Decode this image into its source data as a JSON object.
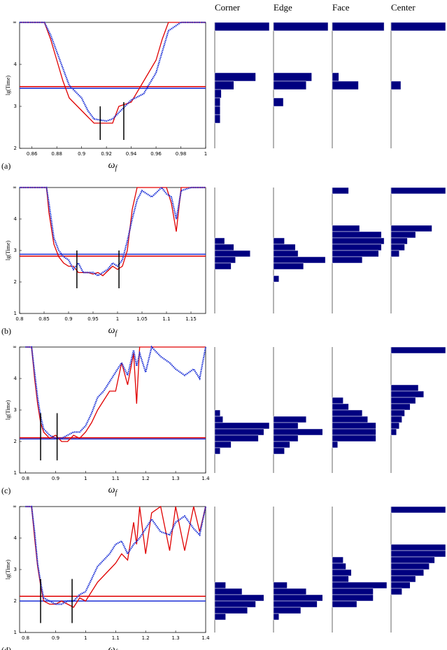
{
  "columns": [
    "Corner",
    "Edge",
    "Face",
    "Center"
  ],
  "chart_data": [
    {
      "type": "line",
      "label": "(a)",
      "y_label": "lg(Time)",
      "x_label": "ω",
      "x_label_sub": "f",
      "xlim": [
        0.85,
        1.0
      ],
      "xticks": [
        0.86,
        0.88,
        0.9,
        0.92,
        0.94,
        0.96,
        0.98,
        1
      ],
      "ylim": [
        2,
        5
      ],
      "yticks": [
        2,
        3,
        4,
        {
          "value": 5,
          "label": "∞"
        }
      ],
      "x": [
        0.85,
        0.86,
        0.87,
        0.875,
        0.88,
        0.885,
        0.89,
        0.9,
        0.905,
        0.91,
        0.92,
        0.925,
        0.93,
        0.94,
        0.95,
        0.96,
        0.965,
        0.97,
        0.98,
        0.99,
        1.0
      ],
      "series": [
        {
          "color": "#e00000",
          "values": [
            5,
            5,
            5,
            4.6,
            4.1,
            3.6,
            3.2,
            2.9,
            2.75,
            2.6,
            2.6,
            2.6,
            3.0,
            3.1,
            3.6,
            4.1,
            4.6,
            5,
            5,
            5,
            5
          ]
        },
        {
          "color": "#1a2fd6",
          "values": [
            5,
            5,
            5,
            4.7,
            4.3,
            3.9,
            3.5,
            3.2,
            2.9,
            2.7,
            2.65,
            2.7,
            2.85,
            3.15,
            3.3,
            3.8,
            4.3,
            4.8,
            5,
            5,
            5
          ]
        }
      ],
      "hlines": [
        {
          "color": "#e00000",
          "value": 3.47
        },
        {
          "color": "#1a2fd6",
          "value": 3.43
        }
      ],
      "vbars": [
        {
          "x": 0.915,
          "values": [
            2.2,
            3.0
          ]
        },
        {
          "x": 0.934,
          "values": [
            2.2,
            3.1
          ]
        }
      ],
      "hist_bin": 0.2,
      "hist_color": "#000080",
      "hist_xlim": [
        0,
        100
      ],
      "histograms": [
        {
          "y": [
            4.9,
            3.7,
            3.5,
            3.3,
            3.1,
            2.9,
            2.7
          ],
          "values": [
            100,
            75,
            35,
            12,
            10,
            10,
            10
          ]
        },
        {
          "y": [
            4.9,
            3.7,
            3.5,
            3.1
          ],
          "values": [
            100,
            70,
            60,
            18
          ]
        },
        {
          "y": [
            4.9,
            3.7,
            3.5
          ],
          "values": [
            95,
            12,
            48
          ]
        },
        {
          "y": [
            4.9,
            3.5
          ],
          "values": [
            100,
            18
          ]
        }
      ]
    },
    {
      "type": "line",
      "label": "(b)",
      "y_label": "lg(Time)",
      "x_label": "ω",
      "x_label_sub": "f",
      "xlim": [
        0.8,
        1.18
      ],
      "xticks": [
        0.8,
        0.85,
        0.9,
        0.95,
        1,
        1.05,
        1.1,
        1.15
      ],
      "ylim": [
        1,
        5
      ],
      "yticks": [
        1,
        2,
        3,
        4,
        {
          "value": 5,
          "label": "∞"
        }
      ],
      "x": [
        0.8,
        0.84,
        0.855,
        0.86,
        0.87,
        0.88,
        0.89,
        0.9,
        0.91,
        0.92,
        0.93,
        0.94,
        0.95,
        0.96,
        0.97,
        0.98,
        0.99,
        1.0,
        1.01,
        1.02,
        1.03,
        1.04,
        1.05,
        1.07,
        1.09,
        1.1,
        1.11,
        1.12,
        1.13,
        1.15,
        1.18
      ],
      "series": [
        {
          "color": "#e00000",
          "values": [
            5,
            5,
            5,
            4.2,
            3.2,
            2.8,
            2.6,
            2.5,
            2.5,
            2.3,
            2.3,
            2.3,
            2.25,
            2.3,
            2.2,
            2.35,
            2.5,
            2.4,
            2.5,
            3.0,
            4.3,
            5,
            5,
            5,
            5,
            5,
            4.5,
            3.6,
            5,
            5,
            5
          ]
        },
        {
          "color": "#1a2fd6",
          "values": [
            5,
            5,
            5,
            4.5,
            3.4,
            3.0,
            2.8,
            2.7,
            2.4,
            2.6,
            2.3,
            2.3,
            2.3,
            2.2,
            2.3,
            2.4,
            2.6,
            2.5,
            2.7,
            3.3,
            4.0,
            4.6,
            4.9,
            4.7,
            5,
            4.8,
            4.7,
            4.0,
            4.9,
            5,
            5
          ]
        }
      ],
      "hlines": [
        {
          "color": "#e00000",
          "value": 2.82
        },
        {
          "color": "#1a2fd6",
          "value": 2.88
        }
      ],
      "vbars": [
        {
          "x": 0.917,
          "values": [
            1.8,
            3.0
          ]
        },
        {
          "x": 1.003,
          "values": [
            1.8,
            3.0
          ]
        }
      ],
      "hist_bin": 0.2,
      "hist_color": "#000080",
      "hist_xlim": [
        0,
        100
      ],
      "histograms": [
        {
          "y": [
            3.3,
            3.1,
            2.9,
            2.7,
            2.5
          ],
          "values": [
            18,
            35,
            65,
            38,
            30
          ]
        },
        {
          "y": [
            3.3,
            3.1,
            2.9,
            2.7,
            2.5,
            2.1
          ],
          "values": [
            20,
            40,
            45,
            95,
            55,
            10
          ]
        },
        {
          "y": [
            4.9,
            3.7,
            3.5,
            3.3,
            3.1,
            2.9,
            2.7
          ],
          "values": [
            30,
            50,
            90,
            95,
            90,
            85,
            55
          ]
        },
        {
          "y": [
            4.9,
            3.7,
            3.5,
            3.3,
            3.1,
            2.9
          ],
          "values": [
            100,
            75,
            45,
            30,
            25,
            15
          ]
        }
      ]
    },
    {
      "type": "line",
      "label": "(c)",
      "y_label": "lg(Time)",
      "x_label": "ω",
      "x_label_sub": "f",
      "xlim": [
        0.78,
        1.4
      ],
      "xticks": [
        0.8,
        0.9,
        1,
        1.1,
        1.2,
        1.3,
        1.4
      ],
      "ylim": [
        1,
        5
      ],
      "yticks": [
        1,
        2,
        3,
        4,
        {
          "value": 5,
          "label": "∞"
        }
      ],
      "x": [
        0.8,
        0.82,
        0.83,
        0.84,
        0.85,
        0.86,
        0.88,
        0.9,
        0.92,
        0.94,
        0.96,
        0.98,
        1.0,
        1.02,
        1.04,
        1.06,
        1.08,
        1.1,
        1.12,
        1.14,
        1.16,
        1.17,
        1.18,
        1.2,
        1.22,
        1.25,
        1.28,
        1.3,
        1.33,
        1.36,
        1.38,
        1.4
      ],
      "series": [
        {
          "color": "#e00000",
          "values": [
            5,
            5,
            4,
            3.2,
            2.6,
            2.3,
            2.1,
            2.2,
            2.0,
            2.0,
            2.2,
            2.1,
            2.3,
            2.6,
            3.0,
            3.3,
            3.6,
            3.6,
            4.5,
            3.8,
            4.8,
            3.2,
            5,
            5,
            5,
            5,
            5,
            5,
            5,
            5,
            5,
            5
          ]
        },
        {
          "color": "#1a2fd6",
          "values": [
            5,
            5,
            4.2,
            3.4,
            2.8,
            2.4,
            2.2,
            2.1,
            2.1,
            2.2,
            2.3,
            2.3,
            2.5,
            2.9,
            3.4,
            3.6,
            3.9,
            4.2,
            4.5,
            4.1,
            4.9,
            4.4,
            4.8,
            4.2,
            5,
            4.7,
            4.5,
            4.3,
            4.1,
            4.3,
            4.0,
            5
          ]
        }
      ],
      "hlines": [
        {
          "color": "#e00000",
          "value": 2.12
        },
        {
          "color": "#1a2fd6",
          "value": 2.08
        }
      ],
      "vbars": [
        {
          "x": 0.85,
          "values": [
            1.4,
            2.9
          ]
        },
        {
          "x": 0.905,
          "values": [
            1.4,
            2.9
          ]
        }
      ],
      "hist_bin": 0.2,
      "hist_color": "#000080",
      "hist_xlim": [
        0,
        100
      ],
      "histograms": [
        {
          "y": [
            2.9,
            2.7,
            2.5,
            2.3,
            2.1,
            1.9,
            1.7
          ],
          "values": [
            10,
            15,
            100,
            90,
            80,
            30,
            10
          ]
        },
        {
          "y": [
            2.7,
            2.5,
            2.3,
            2.1,
            1.9,
            1.7
          ],
          "values": [
            60,
            45,
            90,
            45,
            30,
            20
          ]
        },
        {
          "y": [
            3.3,
            3.1,
            2.9,
            2.7,
            2.5,
            2.3,
            2.1,
            1.9
          ],
          "values": [
            20,
            30,
            55,
            65,
            80,
            80,
            80,
            10
          ]
        },
        {
          "y": [
            4.9,
            3.7,
            3.5,
            3.3,
            3.1,
            2.9,
            2.7,
            2.5,
            2.3
          ],
          "values": [
            100,
            50,
            60,
            45,
            35,
            25,
            20,
            15,
            10
          ]
        }
      ]
    },
    {
      "type": "line",
      "label": "(d)",
      "y_label": "lg(Time)",
      "x_label": "ω",
      "x_label_sub": "f",
      "xlim": [
        0.78,
        1.4
      ],
      "xticks": [
        0.8,
        0.9,
        1,
        1.1,
        1.2,
        1.3,
        1.4
      ],
      "ylim": [
        1,
        5
      ],
      "yticks": [
        1,
        2,
        3,
        4,
        {
          "value": 5,
          "label": "∞"
        }
      ],
      "x": [
        0.8,
        0.82,
        0.83,
        0.84,
        0.85,
        0.86,
        0.88,
        0.9,
        0.92,
        0.94,
        0.96,
        0.98,
        1.0,
        1.02,
        1.04,
        1.06,
        1.08,
        1.1,
        1.12,
        1.14,
        1.16,
        1.17,
        1.18,
        1.2,
        1.22,
        1.25,
        1.28,
        1.3,
        1.33,
        1.36,
        1.38,
        1.4
      ],
      "series": [
        {
          "color": "#e00000",
          "values": [
            5,
            5,
            4,
            3.1,
            2.5,
            2.0,
            1.9,
            1.9,
            2.0,
            1.9,
            1.8,
            2.1,
            2.0,
            2.3,
            2.6,
            2.8,
            3.0,
            3.2,
            3.5,
            3.3,
            4.5,
            3.8,
            5,
            3.5,
            4.8,
            5,
            3.6,
            5,
            3.6,
            5,
            4.2,
            5
          ]
        },
        {
          "color": "#1a2fd6",
          "values": [
            5,
            5,
            4.2,
            3.2,
            2.6,
            2.1,
            2.0,
            1.9,
            1.9,
            2.0,
            2.0,
            2.2,
            2.3,
            2.7,
            3.1,
            3.3,
            3.5,
            3.8,
            3.9,
            3.5,
            3.8,
            3.9,
            4.0,
            4.3,
            4.6,
            4.2,
            4.1,
            4.5,
            4.7,
            4.3,
            4.1,
            5
          ]
        }
      ],
      "hlines": [
        {
          "color": "#e00000",
          "value": 2.15
        },
        {
          "color": "#1a2fd6",
          "value": 2.0
        }
      ],
      "vbars": [
        {
          "x": 0.85,
          "values": [
            1.3,
            2.7
          ]
        },
        {
          "x": 0.955,
          "values": [
            1.3,
            2.7
          ]
        }
      ],
      "hist_bin": 0.2,
      "hist_color": "#000080",
      "hist_xlim": [
        0,
        100
      ],
      "histograms": [
        {
          "y": [
            2.5,
            2.3,
            2.1,
            1.9,
            1.7,
            1.5
          ],
          "values": [
            20,
            50,
            90,
            75,
            60,
            20
          ]
        },
        {
          "y": [
            2.5,
            2.3,
            2.1,
            1.9,
            1.7,
            1.5
          ],
          "values": [
            25,
            60,
            90,
            80,
            50,
            10
          ]
        },
        {
          "y": [
            3.3,
            3.1,
            2.9,
            2.7,
            2.5,
            2.3,
            2.1,
            1.9
          ],
          "values": [
            20,
            25,
            35,
            30,
            100,
            75,
            75,
            45
          ]
        },
        {
          "y": [
            4.9,
            3.7,
            3.5,
            3.3,
            3.1,
            2.9,
            2.7,
            2.5,
            2.3
          ],
          "values": [
            100,
            100,
            100,
            80,
            70,
            60,
            45,
            35,
            20
          ]
        }
      ]
    }
  ]
}
